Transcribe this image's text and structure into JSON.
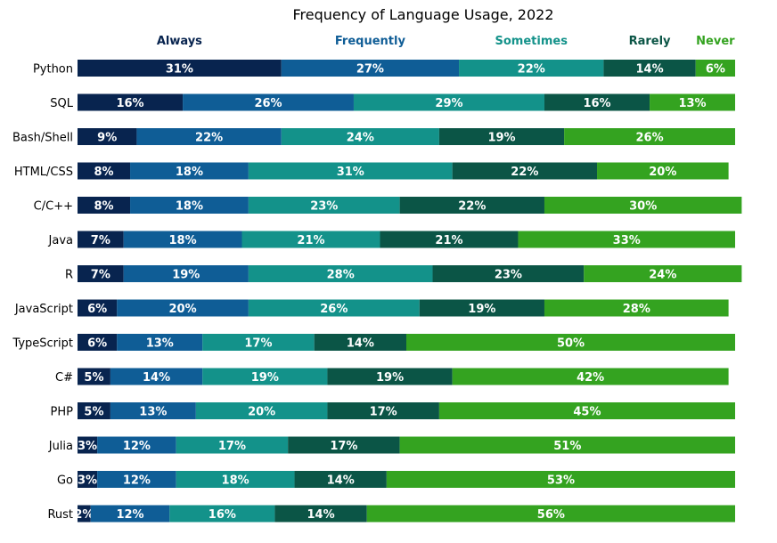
{
  "chart_data": {
    "type": "bar",
    "orientation": "horizontal",
    "stacked": true,
    "normalized_percent": true,
    "title": "Frequency of Language Usage, 2022",
    "xlabel": "",
    "ylabel": "",
    "xlim": [
      0,
      100
    ],
    "grid": false,
    "legend_placement": "top",
    "categories": [
      "Python",
      "SQL",
      "Bash/Shell",
      "HTML/CSS",
      "C/C++",
      "Java",
      "R",
      "JavaScript",
      "TypeScript",
      "C#",
      "PHP",
      "Julia",
      "Go",
      "Rust"
    ],
    "series": [
      {
        "name": "Always",
        "color": "#08244f",
        "values": [
          31,
          16,
          9,
          8,
          8,
          7,
          7,
          6,
          6,
          5,
          5,
          3,
          3,
          2
        ]
      },
      {
        "name": "Frequently",
        "color": "#0f5d96",
        "values": [
          27,
          26,
          22,
          18,
          18,
          18,
          19,
          20,
          13,
          14,
          13,
          12,
          12,
          12
        ]
      },
      {
        "name": "Sometimes",
        "color": "#13928a",
        "values": [
          22,
          29,
          24,
          31,
          23,
          21,
          28,
          26,
          17,
          19,
          20,
          17,
          18,
          16
        ]
      },
      {
        "name": "Rarely",
        "color": "#0b5546",
        "values": [
          14,
          16,
          19,
          22,
          22,
          21,
          23,
          19,
          14,
          19,
          17,
          17,
          14,
          14
        ]
      },
      {
        "name": "Never",
        "color": "#34a320",
        "values": [
          6,
          13,
          26,
          20,
          30,
          33,
          24,
          28,
          50,
          42,
          45,
          51,
          53,
          56
        ]
      }
    ]
  }
}
